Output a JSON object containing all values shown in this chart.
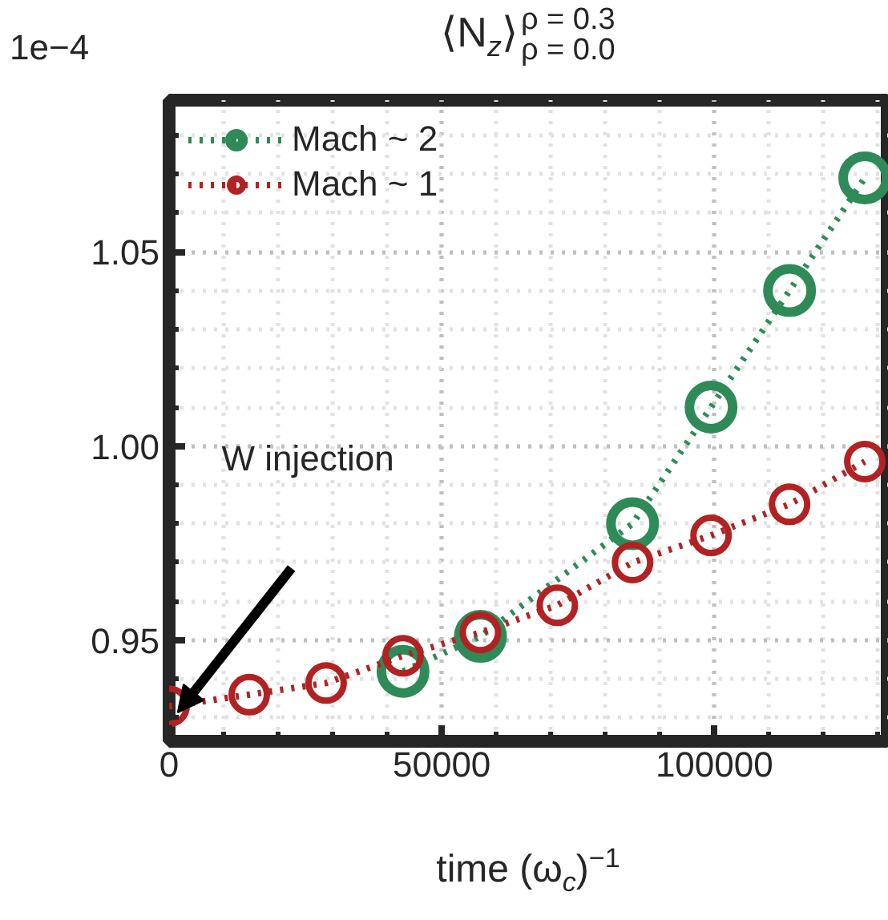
{
  "chart_data": {
    "type": "line",
    "title": "⟨N$_{z}$⟩$^{ρ = 0.3}$$_{ρ = 0.0}$",
    "xlabel": "time (ω$_{c}$)$^{−1}$",
    "annotations": [
      "1e−4",
      "W injection"
    ],
    "series": [
      {
        "name": "Mach ~ 2",
        "color": "#2e8b57",
        "x": [
          42900,
          57100,
          85000,
          99400,
          113800,
          127600
        ],
        "values": [
          0.942,
          0.951,
          0.98,
          1.01,
          1.04,
          1.069
        ]
      },
      {
        "name": "Mach ~ 1",
        "color": "#b22222",
        "x": [
          0,
          14700,
          28800,
          42900,
          57100,
          71200,
          85000,
          99400,
          113800,
          127600
        ],
        "values": [
          0.933,
          0.936,
          0.939,
          0.946,
          0.952,
          0.959,
          0.97,
          0.977,
          0.985,
          0.996
        ]
      }
    ],
    "xlim": [
      0,
      132000
    ],
    "ylim": [
      0.924,
      1.089
    ],
    "xticks": [
      {
        "value": 0,
        "label": "0"
      },
      {
        "value": 50000,
        "label": "50000"
      },
      {
        "value": 100000,
        "label": "100000"
      }
    ],
    "yticks": [
      {
        "value": 0.95,
        "label": "0.95"
      },
      {
        "value": 1.0,
        "label": "1.00"
      },
      {
        "value": 1.05,
        "label": "1.05"
      }
    ],
    "grid": true,
    "legend": "top left",
    "marker": "circle",
    "line_style": "dotted"
  }
}
